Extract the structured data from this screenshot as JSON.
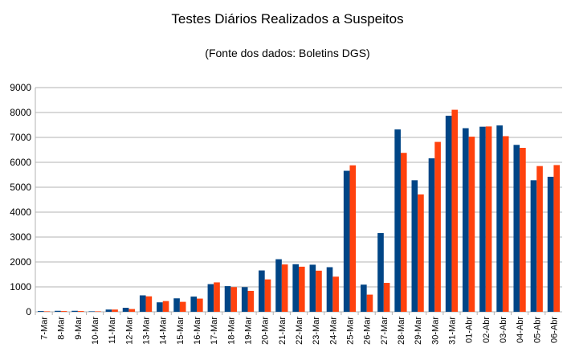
{
  "chart_data": {
    "type": "bar",
    "title": "Testes Diários Realizados a Suspeitos",
    "subtitle": "(Fonte dos dados: Boletins DGS)",
    "xlabel": "",
    "ylabel": "",
    "ylim": [
      0,
      9000
    ],
    "yticks": [
      0,
      1000,
      2000,
      3000,
      4000,
      5000,
      6000,
      7000,
      8000,
      9000
    ],
    "grid": true,
    "legend": "none",
    "categories": [
      "7-Mar",
      "8-Mar",
      "9-Mar",
      "10-Mar",
      "11-Mar",
      "12-Mar",
      "13-Mar",
      "14-Mar",
      "15-Mar",
      "16-Mar",
      "17-Mar",
      "18-Mar",
      "19-Mar",
      "20-Mar",
      "21-Mar",
      "22-Mar",
      "23-Mar",
      "24-Mar",
      "25-Mar",
      "26-Mar",
      "27-Mar",
      "28-Mar",
      "29-Mar",
      "30-Mar",
      "31-Mar",
      "01-Abr",
      "02-Abr",
      "03-Abr",
      "04-Abr",
      "05-Abr",
      "06-Abr"
    ],
    "series": [
      {
        "color": "#004586",
        "values": [
          30,
          40,
          40,
          20,
          90,
          160,
          660,
          380,
          540,
          610,
          1110,
          1030,
          990,
          1660,
          2110,
          1910,
          1890,
          1790,
          5660,
          1090,
          3160,
          7320,
          5280,
          6160,
          7870,
          7370,
          7430,
          7480,
          6700,
          5280,
          5420
        ]
      },
      {
        "color": "#ff420e",
        "values": [
          20,
          30,
          30,
          20,
          90,
          110,
          620,
          430,
          400,
          530,
          1180,
          990,
          840,
          1300,
          1900,
          1810,
          1650,
          1410,
          5880,
          690,
          1160,
          6380,
          4710,
          6820,
          8110,
          7030,
          7440,
          7050,
          6580,
          5850,
          5890
        ]
      }
    ]
  }
}
